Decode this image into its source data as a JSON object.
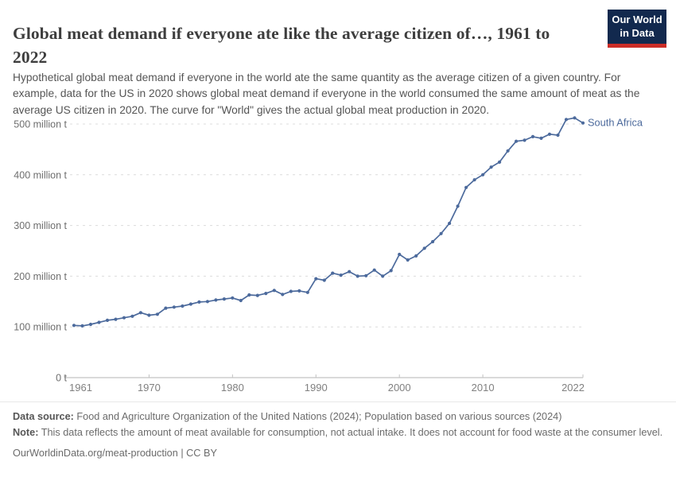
{
  "header": {
    "title": "Global meat demand if everyone ate like the average citizen of…, 1961 to 2022",
    "logo_line1": "Our World",
    "logo_line2": "in Data"
  },
  "subtitle": "Hypothetical global meat demand if everyone in the world ate the same quantity as the average citizen of a given country. For example, data for the US in 2020 shows global meat demand if everyone in the world consumed the same amount of meat as the average US citizen in 2020. The curve for \"World\" gives the actual global meat production in 2020.",
  "chart_data": {
    "type": "line",
    "title": "Global meat demand if everyone ate like the average citizen of…, 1961 to 2022",
    "entity_label": "South Africa",
    "unit": "million t",
    "line_color": "#4C6A9C",
    "grid": "horizontal-dashed",
    "legend_position": "end-of-line-label",
    "xlim": [
      1961,
      2022
    ],
    "ylim": [
      0,
      520
    ],
    "x_ticks": [
      {
        "year": 1961,
        "label": "1961"
      },
      {
        "year": 1970,
        "label": "1970"
      },
      {
        "year": 1980,
        "label": "1980"
      },
      {
        "year": 1990,
        "label": "1990"
      },
      {
        "year": 2000,
        "label": "2000"
      },
      {
        "year": 2010,
        "label": "2010"
      },
      {
        "year": 2022,
        "label": "2022"
      }
    ],
    "y_ticks": [
      {
        "value": 0,
        "label": "0 t"
      },
      {
        "value": 100,
        "label": "100 million t"
      },
      {
        "value": 200,
        "label": "200 million t"
      },
      {
        "value": 300,
        "label": "300 million t"
      },
      {
        "value": 400,
        "label": "400 million t"
      },
      {
        "value": 500,
        "label": "500 million t"
      }
    ],
    "years": [
      1961,
      1962,
      1963,
      1964,
      1965,
      1966,
      1967,
      1968,
      1969,
      1970,
      1971,
      1972,
      1973,
      1974,
      1975,
      1976,
      1977,
      1978,
      1979,
      1980,
      1981,
      1982,
      1983,
      1984,
      1985,
      1986,
      1987,
      1988,
      1989,
      1990,
      1991,
      1992,
      1993,
      1994,
      1995,
      1996,
      1997,
      1998,
      1999,
      2000,
      2001,
      2002,
      2003,
      2004,
      2005,
      2006,
      2007,
      2008,
      2009,
      2010,
      2011,
      2012,
      2013,
      2014,
      2015,
      2016,
      2017,
      2018,
      2019,
      2020,
      2021,
      2022
    ],
    "values": [
      103,
      102,
      105,
      109,
      113,
      115,
      118,
      121,
      128,
      123,
      125,
      137,
      139,
      141,
      145,
      149,
      150,
      153,
      155,
      157,
      152,
      163,
      162,
      166,
      172,
      164,
      170,
      171,
      168,
      195,
      192,
      206,
      202,
      209,
      200,
      201,
      212,
      200,
      211,
      243,
      232,
      240,
      255,
      268,
      284,
      304,
      338,
      375,
      390,
      400,
      415,
      425,
      447,
      466,
      468,
      475,
      472,
      480,
      478,
      509,
      512,
      502
    ]
  },
  "footer": {
    "data_source_label": "Data source:",
    "data_source_text": " Food and Agriculture Organization of the United Nations (2024); Population based on various sources (2024)",
    "note_label": "Note:",
    "note_text": " This data reflects the amount of meat available for consumption, not actual intake. It does not account for food waste at the consumer level.",
    "url_line": "OurWorldinData.org/meat-production | CC BY"
  }
}
